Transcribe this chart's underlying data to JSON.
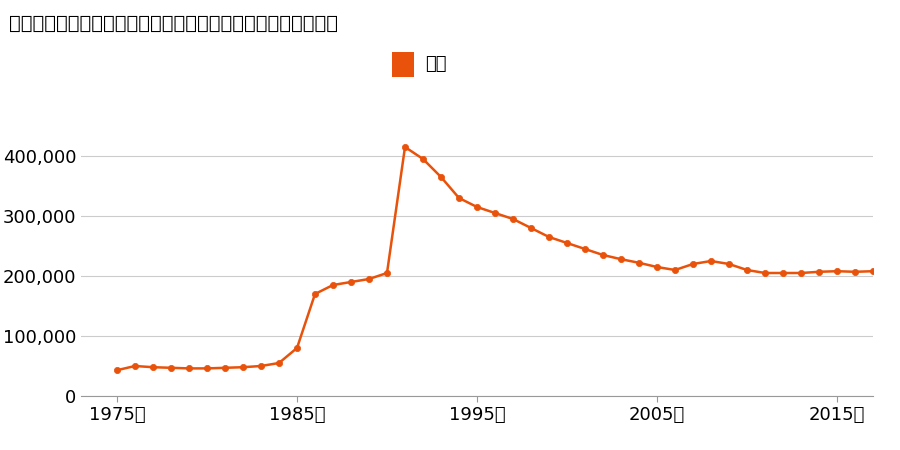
{
  "title": "神奈川県横浜市磯子区上中里町字大サキ８７番２６の地価推移",
  "legend_label": "価格",
  "line_color": "#e8520a",
  "marker_color": "#e8520a",
  "background_color": "#ffffff",
  "grid_color": "#cccccc",
  "xlabel_suffix": "年",
  "xlim": [
    1973,
    2017
  ],
  "ylim": [
    0,
    450000
  ],
  "yticks": [
    0,
    100000,
    200000,
    300000,
    400000
  ],
  "xticks": [
    1975,
    1985,
    1995,
    2005,
    2015
  ],
  "years": [
    1975,
    1976,
    1977,
    1978,
    1979,
    1980,
    1981,
    1982,
    1983,
    1984,
    1985,
    1986,
    1987,
    1988,
    1989,
    1990,
    1991,
    1992,
    1993,
    1994,
    1995,
    1996,
    1997,
    1998,
    1999,
    2000,
    2001,
    2002,
    2003,
    2004,
    2005,
    2006,
    2007,
    2008,
    2009,
    2010,
    2011,
    2012,
    2013,
    2014,
    2015,
    2016,
    2017
  ],
  "values": [
    43000,
    50000,
    48000,
    47000,
    46000,
    46000,
    47000,
    48000,
    50000,
    55000,
    80000,
    170000,
    185000,
    190000,
    195000,
    205000,
    415000,
    395000,
    365000,
    330000,
    315000,
    305000,
    295000,
    280000,
    265000,
    255000,
    245000,
    235000,
    228000,
    222000,
    215000,
    210000,
    220000,
    225000,
    220000,
    210000,
    205000,
    205000,
    205000,
    207000,
    208000,
    207000,
    208000
  ]
}
